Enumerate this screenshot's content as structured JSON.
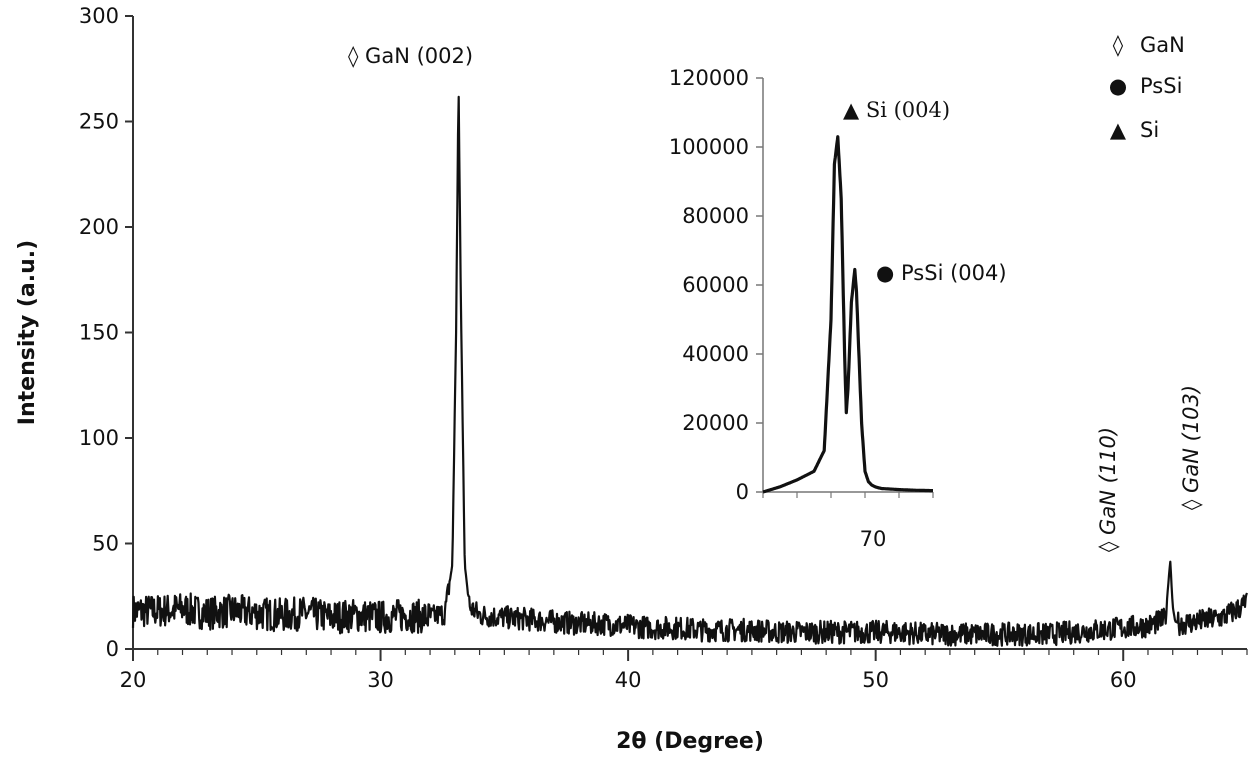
{
  "chart_data": [
    {
      "type": "line",
      "title": "",
      "xlabel": "2θ (Degree)",
      "ylabel": "Intensity (a.u.)",
      "xlim": [
        20,
        65
      ],
      "ylim": [
        0,
        300
      ],
      "x_ticks": [
        20,
        30,
        40,
        50,
        60
      ],
      "x_tick_labels": [
        "20",
        "30",
        "40",
        "50",
        "60"
      ],
      "y_ticks": [
        0,
        50,
        100,
        150,
        200,
        250,
        300
      ],
      "y_tick_labels": [
        "0",
        "50",
        "100",
        "150",
        "200",
        "250",
        "300"
      ],
      "grid": false,
      "series": [
        {
          "color": "#111111",
          "x": [
            20,
            21,
            22,
            23,
            24,
            25,
            26,
            27,
            28,
            29,
            30,
            31,
            32,
            32.6,
            32.9,
            33.05,
            33.15,
            33.25,
            33.4,
            33.6,
            34,
            35,
            36,
            37,
            38,
            39,
            40,
            41,
            42,
            43,
            44,
            45,
            46,
            47,
            48,
            49,
            50,
            51,
            52,
            53,
            54,
            55,
            56,
            57,
            58,
            59,
            60,
            61,
            61.7,
            61.9,
            62.0,
            62.1,
            62.3,
            63,
            64,
            64.5,
            65
          ],
          "y": [
            18,
            18,
            19,
            17,
            18,
            17,
            16,
            17,
            15,
            16,
            15,
            16,
            15,
            17,
            40,
            150,
            268,
            160,
            40,
            20,
            16,
            15,
            14,
            13,
            12,
            12,
            11,
            10,
            10,
            9,
            9,
            9,
            8,
            8,
            8,
            8,
            8,
            8,
            7,
            7,
            7,
            7,
            7,
            7,
            8,
            9,
            10,
            11,
            14,
            42,
            20,
            13,
            12,
            13,
            15,
            18,
            22
          ]
        }
      ],
      "legend": {
        "position": "top-right",
        "entries": [
          {
            "symbol": "◊",
            "label": "GaN"
          },
          {
            "symbol": "●",
            "label": "PsSi"
          },
          {
            "symbol": "▲",
            "label": "Si"
          }
        ]
      },
      "annotations": [
        {
          "text": "◊ GaN (002)",
          "x": 33.15,
          "y": 268
        },
        {
          "text": "◊ GaN (110)",
          "x": 59.6,
          "y": 48
        },
        {
          "text": "◊ GaN (103)",
          "x": 62.6,
          "y": 70
        }
      ]
    },
    {
      "type": "line",
      "title": "",
      "xlabel": "",
      "ylabel": "",
      "xlim": [
        67,
        72
      ],
      "ylim": [
        0,
        120000
      ],
      "x_ticks": [
        70
      ],
      "x_tick_labels": [
        "70"
      ],
      "y_ticks": [
        0,
        20000,
        40000,
        60000,
        80000,
        100000,
        120000
      ],
      "y_tick_labels": [
        "0",
        "20000",
        "40000",
        "60000",
        "80000",
        "100000",
        "120000"
      ],
      "grid": false,
      "series": [
        {
          "color": "#111111",
          "x": [
            67.0,
            67.5,
            68.0,
            68.5,
            68.8,
            69.0,
            69.1,
            69.2,
            69.3,
            69.4,
            69.45,
            69.5,
            69.6,
            69.7,
            69.75,
            69.8,
            69.9,
            70.0,
            70.1,
            70.2,
            70.3,
            70.4,
            70.5,
            71.0,
            71.5,
            72.0
          ],
          "y": [
            0,
            1500,
            3500,
            6000,
            12000,
            50000,
            95000,
            103000,
            85000,
            40000,
            23000,
            30000,
            55000,
            64500,
            58000,
            45000,
            20000,
            6000,
            3000,
            2000,
            1500,
            1200,
            1000,
            700,
            500,
            400
          ]
        }
      ],
      "annotations": [
        {
          "text": "▲ Si (004)",
          "x": 69.2,
          "y": 103000
        },
        {
          "text": "● PsSi (004)",
          "x": 69.75,
          "y": 64500
        }
      ]
    }
  ]
}
